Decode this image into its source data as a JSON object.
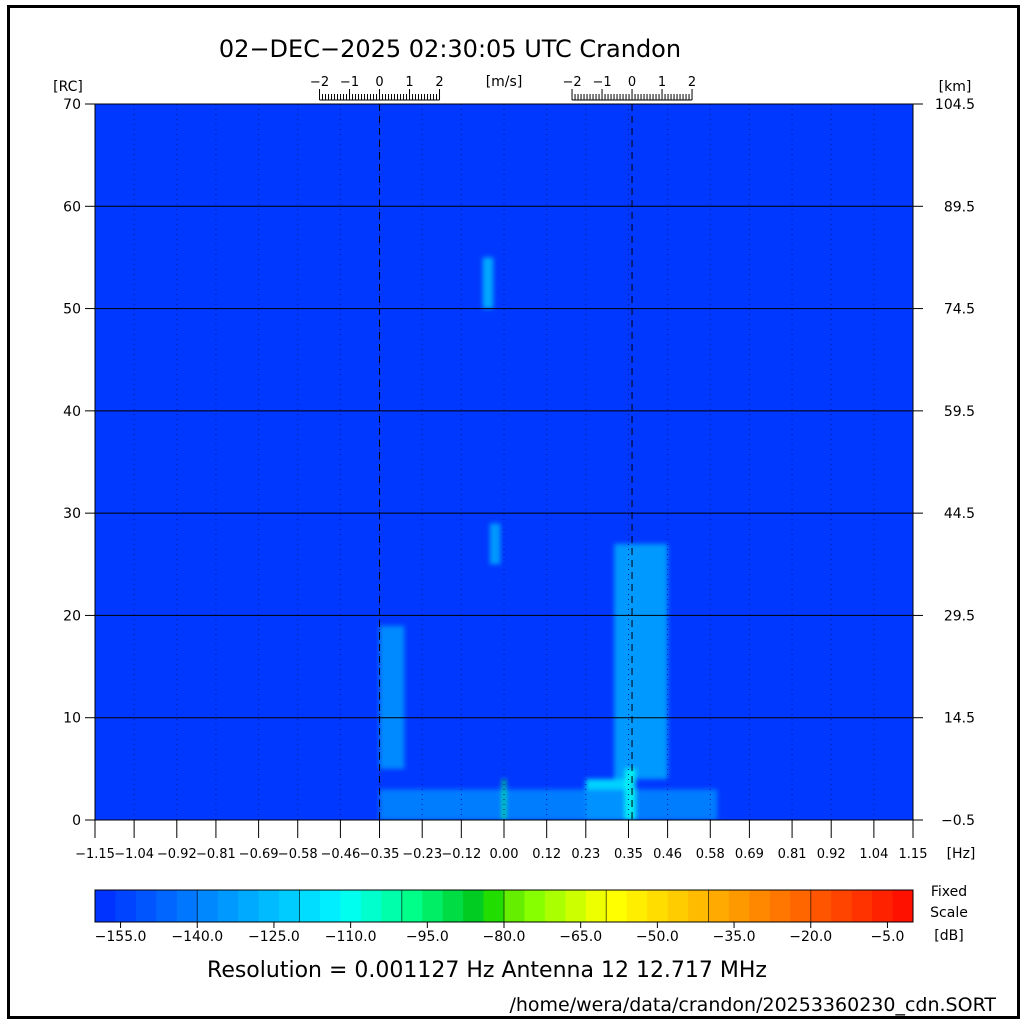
{
  "header": {
    "title": "02−DEC−2025 02:30:05 UTC   Crandon"
  },
  "axes": {
    "left_unit": "[RC]",
    "right_unit": "[km]",
    "top_unit": "[m/s]",
    "bottom_unit": "[Hz]"
  },
  "chart_data": {
    "type": "heatmap",
    "title": "02−DEC−2025 02:30:05 UTC   Crandon",
    "xlabel": "[Hz]",
    "ylabel": "[RC]",
    "y2label": "[km]",
    "x2label": "[m/s]",
    "xlim": [
      -1.15,
      1.15
    ],
    "ylim": [
      0,
      70
    ],
    "x_ticks": [
      -1.15,
      -1.04,
      -0.92,
      -0.81,
      -0.69,
      -0.58,
      -0.46,
      -0.35,
      -0.23,
      -0.12,
      0.0,
      0.12,
      0.23,
      0.35,
      0.46,
      0.58,
      0.69,
      0.81,
      0.92,
      1.04,
      1.15
    ],
    "x_tick_labels": [
      "−1.15",
      "−1.04",
      "−0.92",
      "−0.81",
      "−0.69",
      "−0.58",
      "−0.46",
      "−0.35",
      "−0.23",
      "−0.12",
      "0.00",
      "0.12",
      "0.23",
      "0.35",
      "0.46",
      "0.58",
      "0.69",
      "0.81",
      "0.92",
      "1.04",
      "1.15"
    ],
    "y_ticks": [
      0,
      10,
      20,
      30,
      40,
      50,
      60,
      70
    ],
    "y_tick_labels": [
      "0",
      "10",
      "20",
      "30",
      "40",
      "50",
      "60",
      "70"
    ],
    "y2_tick_labels": [
      "−0.5",
      "14.5",
      "29.5",
      "44.5",
      "59.5",
      "74.5",
      "89.5",
      "104.5"
    ],
    "bragg_lines_hz": [
      -0.35,
      0.36
    ],
    "velocity_scale": {
      "ticks_ms": [
        -2,
        -1,
        0,
        1,
        2
      ],
      "tick_labels": [
        "−2",
        "−1",
        "0",
        "1",
        "2"
      ],
      "centers_hz": [
        -0.35,
        0.36
      ]
    },
    "background_level_db": -155,
    "features": [
      {
        "x_range": [
          -0.06,
          -0.03
        ],
        "y_range": [
          50,
          55
        ],
        "level_db": -125
      },
      {
        "x_range": [
          -0.04,
          -0.01
        ],
        "y_range": [
          25,
          29
        ],
        "level_db": -130
      },
      {
        "x_range": [
          -0.35,
          -0.28
        ],
        "y_range": [
          5,
          19
        ],
        "level_db": -135
      },
      {
        "x_range": [
          0.31,
          0.46
        ],
        "y_range": [
          4,
          27
        ],
        "level_db": -130
      },
      {
        "x_range": [
          0.23,
          0.35
        ],
        "y_range": [
          0,
          4
        ],
        "level_db": -115
      },
      {
        "x_range": [
          -0.35,
          0.6
        ],
        "y_range": [
          0,
          3
        ],
        "level_db": -140
      },
      {
        "x_range": [
          -0.005,
          0.005
        ],
        "y_range": [
          0,
          4
        ],
        "level_db": -95
      },
      {
        "x_range": [
          0.34,
          0.37
        ],
        "y_range": [
          0,
          5
        ],
        "level_db": -110
      }
    ]
  },
  "colorbar": {
    "label_fixed": "Fixed",
    "label_scale": "Scale",
    "unit": "[dB]",
    "min_db": -160,
    "max_db": 0,
    "tick_values": [
      -155.0,
      -140.0,
      -125.0,
      -110.0,
      -95.0,
      -80.0,
      -65.0,
      -50.0,
      -35.0,
      -20.0,
      -5.0
    ],
    "tick_labels": [
      "−155.0",
      "−140.0",
      "−125.0",
      "−110.0",
      "−95.0",
      "−80.0",
      "−65.0",
      "−50.0",
      "−35.0",
      "−20.0",
      "−5.0"
    ],
    "colors": [
      "#0033ff",
      "#0044ff",
      "#0055ff",
      "#0066ff",
      "#0077ff",
      "#0088ff",
      "#0099ff",
      "#00aaff",
      "#00bbff",
      "#00ccff",
      "#00ddff",
      "#00eeff",
      "#00ffee",
      "#00ffcc",
      "#00ffaa",
      "#00ff88",
      "#00ee66",
      "#00dd44",
      "#00cc22",
      "#22dd00",
      "#66ee00",
      "#88ff00",
      "#aaff00",
      "#ccff00",
      "#eeff00",
      "#ffff00",
      "#ffee00",
      "#ffdd00",
      "#ffcc00",
      "#ffbb00",
      "#ffaa00",
      "#ff9900",
      "#ff8800",
      "#ff7700",
      "#ff6600",
      "#ff5500",
      "#ff4400",
      "#ff3300",
      "#ff2200",
      "#ff1100"
    ]
  },
  "footer": {
    "resolution": "Resolution = 0.001127 Hz   Antenna 12   12.717 MHz",
    "path": "/home/wera/data/crandon/20253360230_cdn.SORT"
  },
  "colors": {
    "background_field": "#0038ff",
    "grid": "#000000"
  }
}
